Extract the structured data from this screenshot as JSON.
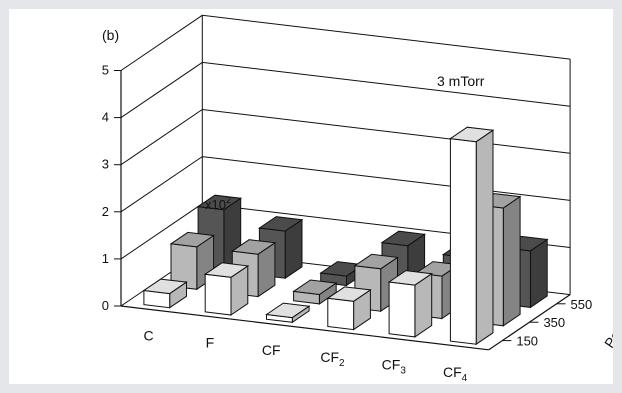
{
  "chart_data": {
    "type": "bar3d",
    "panel_label": "(b)",
    "annotation": "3 mTorr",
    "scale_note": "x10",
    "scale_exp": "2",
    "zlim": [
      0,
      5
    ],
    "z_ticks": [
      "0",
      "1",
      "2",
      "3",
      "4",
      "5"
    ],
    "categories": [
      {
        "base": "C",
        "sub": ""
      },
      {
        "base": "F",
        "sub": ""
      },
      {
        "base": "CF",
        "sub": ""
      },
      {
        "base": "CF",
        "sub": "2"
      },
      {
        "base": "CF",
        "sub": "3"
      },
      {
        "base": "CF",
        "sub": "4"
      }
    ],
    "depth_label": "Power",
    "depth_ticks": [
      "150",
      "350",
      "550"
    ],
    "series": [
      {
        "name": "150",
        "color": "#ffffff",
        "values": [
          0.3,
          0.8,
          0.1,
          0.6,
          1.1,
          4.3
        ]
      },
      {
        "name": "350",
        "color": "#b8b8b8",
        "values": [
          0.9,
          0.9,
          0.2,
          0.9,
          0.9,
          2.5
        ]
      },
      {
        "name": "550",
        "color": "#555555",
        "values": [
          1.3,
          1.0,
          0.2,
          1.0,
          0.9,
          1.2
        ]
      }
    ]
  }
}
